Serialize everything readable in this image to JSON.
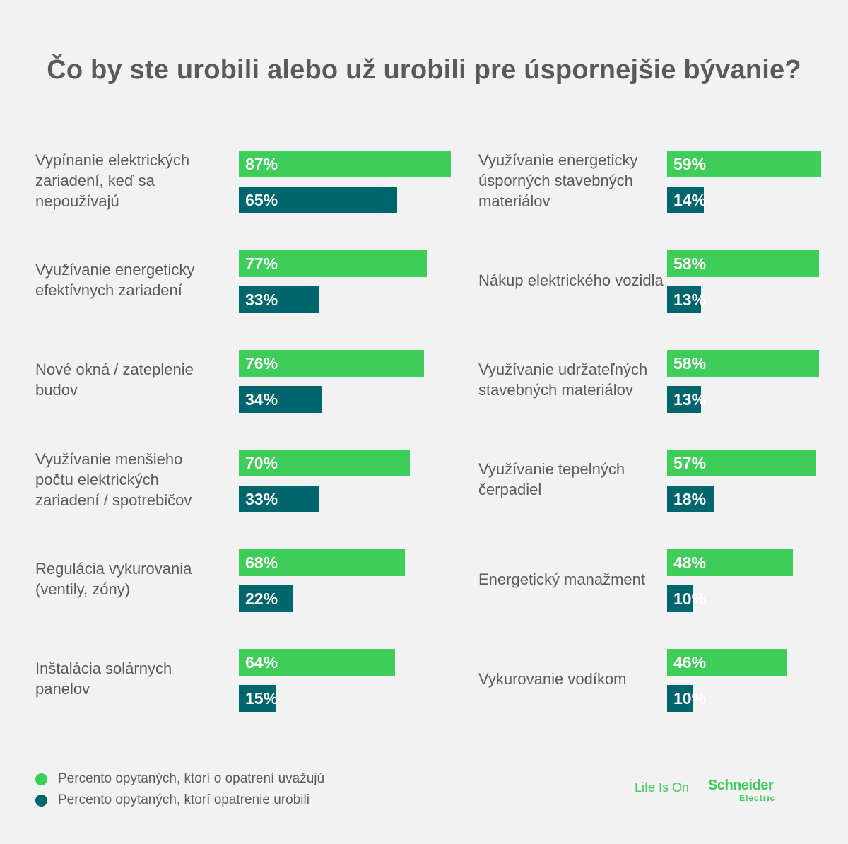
{
  "title": "Čo by ste urobili alebo už urobili pre úspornejšie bývanie?",
  "chart_data": {
    "type": "bar",
    "title": "Čo by ste urobili alebo už urobili pre úspornejšie bývanie?",
    "series": [
      {
        "name": "Percento opytaných, ktorí o opatrení uvažujú",
        "color": "#3dcd58"
      },
      {
        "name": "Percento opytaných, ktorí opatrenie urobili",
        "color": "#00666e"
      }
    ],
    "left_items": [
      {
        "label": "Vypínanie elektrických zariadení, keď sa nepoužívajú",
        "consider": 87,
        "done": 65
      },
      {
        "label": "Využívanie energeticky efektívnych zariadení",
        "consider": 77,
        "done": 33
      },
      {
        "label": "Nové okná / zateplenie budov",
        "consider": 76,
        "done": 34
      },
      {
        "label": "Využívanie menšieho počtu elektrických zariadení / spotrebičov",
        "consider": 70,
        "done": 33
      },
      {
        "label": "Regulácia vykurovania (ventily, zóny)",
        "consider": 68,
        "done": 22
      },
      {
        "label": "Inštalácia solárnych panelov",
        "consider": 64,
        "done": 15
      }
    ],
    "right_items": [
      {
        "label": "Využívanie energeticky úsporných stavebných materiálov",
        "consider": 59,
        "done": 14
      },
      {
        "label": "Nákup elektrického vozidla",
        "consider": 58,
        "done": 13
      },
      {
        "label": "Využívanie udržateľných stavebných materiálov",
        "consider": 58,
        "done": 13
      },
      {
        "label": "Využívanie tepelných čerpadiel",
        "consider": 57,
        "done": 18
      },
      {
        "label": "Energetický manažment",
        "consider": 48,
        "done": 10
      },
      {
        "label": "Vykurovanie vodíkom",
        "consider": 46,
        "done": 10
      }
    ],
    "unit": "%"
  },
  "legend": {
    "consider": "Percento opytaných, ktorí o opatrení uvažujú",
    "done": "Percento opytaných, ktorí opatrenie urobili"
  },
  "logo": {
    "tagline": "Life Is On",
    "brand": "Schneider",
    "brand_sub": "Electric"
  }
}
